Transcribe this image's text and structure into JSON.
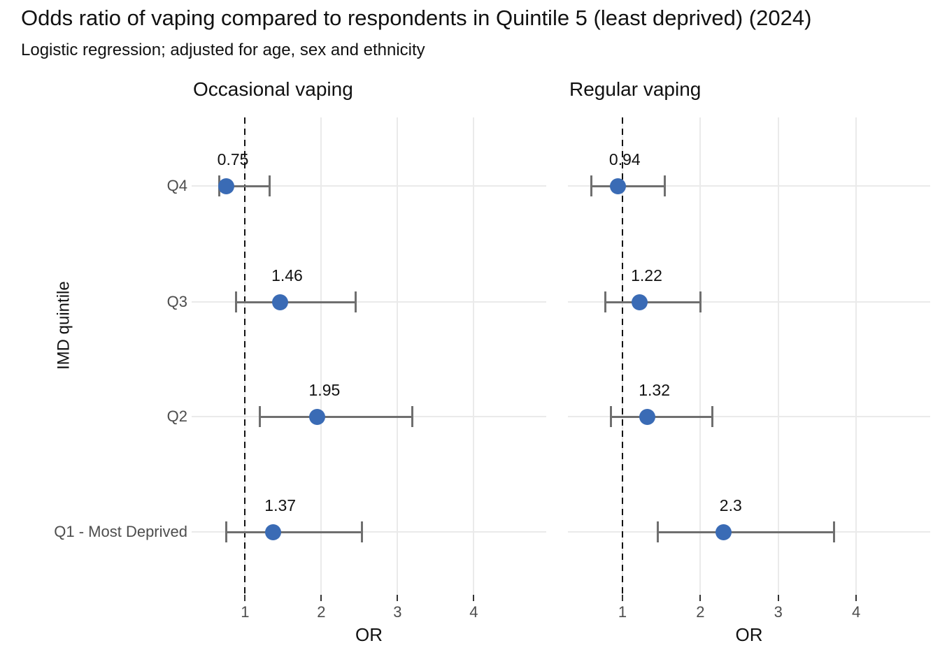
{
  "title": "Odds ratio of vaping compared to respondents in Quintile 5 (least deprived) (2024)",
  "subtitle": "Logistic regression; adjusted for age, sex and ethnicity",
  "chart_data": {
    "type": "scatter",
    "variant": "forest-plot-with-error-bars",
    "xlabel": "OR",
    "ylabel": "IMD quintile",
    "x_ticks": [
      1,
      2,
      3,
      4
    ],
    "xlim": [
      0.3,
      4.95
    ],
    "reference_line_x": 1,
    "grid": true,
    "categories_top_to_bottom": [
      "Q4",
      "Q3",
      "Q2",
      "Q1 - Most Deprived"
    ],
    "panels": [
      {
        "facet_label": "Occasional vaping",
        "points": [
          {
            "category": "Q4",
            "or": 0.75,
            "label": "0.75",
            "ci_low": 0.66,
            "ci_high": 1.32
          },
          {
            "category": "Q3",
            "or": 1.46,
            "label": "1.46",
            "ci_low": 0.88,
            "ci_high": 2.45
          },
          {
            "category": "Q2",
            "or": 1.95,
            "label": "1.95",
            "ci_low": 1.19,
            "ci_high": 3.19
          },
          {
            "category": "Q1 - Most Deprived",
            "or": 1.37,
            "label": "1.37",
            "ci_low": 0.75,
            "ci_high": 2.53
          }
        ]
      },
      {
        "facet_label": "Regular vaping",
        "points": [
          {
            "category": "Q4",
            "or": 0.94,
            "label": "0.94",
            "ci_low": 0.6,
            "ci_high": 1.54
          },
          {
            "category": "Q3",
            "or": 1.22,
            "label": "1.22",
            "ci_low": 0.78,
            "ci_high": 2.0
          },
          {
            "category": "Q2",
            "or": 1.32,
            "label": "1.32",
            "ci_low": 0.85,
            "ci_high": 2.15
          },
          {
            "category": "Q1 - Most Deprived",
            "or": 2.3,
            "label": "2.3",
            "ci_low": 1.45,
            "ci_high": 3.72
          }
        ]
      }
    ],
    "colors": {
      "point": "#3a6bb5",
      "error_bar": "#6f6f6f",
      "gridline": "#eaeaea",
      "reference_line": "#111111",
      "axis_text": "#4d4d4d",
      "text": "#111111"
    }
  }
}
